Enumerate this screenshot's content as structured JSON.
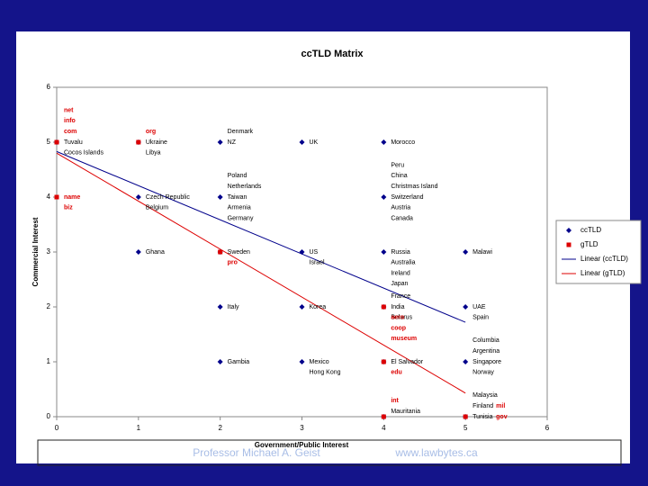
{
  "chart_data": {
    "type": "scatter",
    "title": "ccTLD Matrix",
    "x_label": "Government/Public Interest",
    "y_label": "Commercial Interest",
    "xlim": [
      0,
      6
    ],
    "ylim": [
      0,
      6
    ],
    "xticks": [
      0,
      1,
      2,
      3,
      4,
      5,
      6
    ],
    "yticks": [
      0,
      1,
      2,
      3,
      4,
      5,
      6
    ],
    "grid": false,
    "legend": "right",
    "series": [
      {
        "name": "ccTLD",
        "color": "#00008b",
        "marker": "diamond",
        "x": [
          0,
          1,
          2,
          3,
          4,
          1,
          2,
          4,
          1,
          2,
          3,
          4,
          5,
          2,
          3,
          4,
          5,
          2,
          3,
          4,
          5,
          4,
          5
        ],
        "values": [
          5,
          5,
          5,
          5,
          5,
          4,
          4,
          4,
          3,
          3,
          3,
          3,
          3,
          2,
          2,
          2,
          2,
          1,
          1,
          1,
          1,
          0,
          0
        ],
        "labels": [
          [
            "Tuvalu",
            "Cocos Islands"
          ],
          [
            "Ukraine",
            "Libya"
          ],
          [
            "Denmark",
            "NZ"
          ],
          [
            "UK"
          ],
          [
            "Morocco"
          ],
          [
            "Czech Republic",
            "Belgium"
          ],
          [
            "Poland",
            "Netherlands",
            "Taiwan",
            "Armenia",
            "Germany"
          ],
          [
            "Peru",
            "China",
            "Christmas Island",
            "Switzerland",
            "Austria",
            "Canada"
          ],
          [
            "Ghana"
          ],
          [
            "Sweden"
          ],
          [
            "US",
            "Israel"
          ],
          [
            "Russia",
            "Australia",
            "Ireland",
            "Japan"
          ],
          [
            "Malawi"
          ],
          [
            "Italy"
          ],
          [
            "Korea"
          ],
          [
            "France",
            "India",
            "Belarus"
          ],
          [
            "UAE",
            "Spain"
          ],
          [
            "Gambia"
          ],
          [
            "Mexico",
            "Hong Kong"
          ],
          [
            "El Salvador"
          ],
          [
            "Columbia",
            "Argentina",
            "Singapore",
            "Norway"
          ],
          [
            "Mauritania"
          ],
          [
            "Malaysia",
            "Finland",
            "Tunisia"
          ]
        ]
      },
      {
        "name": "gTLD",
        "color": "#dd0000",
        "marker": "square",
        "x": [
          0,
          1,
          0,
          2,
          4,
          4,
          4,
          5
        ],
        "values": [
          5,
          5,
          4,
          3,
          2,
          1,
          0,
          0
        ],
        "labels": [
          [
            "net",
            "info",
            "com"
          ],
          [
            "org"
          ],
          [
            "name",
            "biz"
          ],
          [
            "pro"
          ],
          [
            "aero",
            "coop",
            "museum"
          ],
          [
            "edu"
          ],
          [
            "int"
          ],
          [
            "mil",
            "gov"
          ]
        ]
      }
    ],
    "trendlines": [
      {
        "name": "Linear (ccTLD)",
        "color": "#00008b",
        "x": [
          0,
          5
        ],
        "values": [
          4.83,
          1.72
        ]
      },
      {
        "name": "Linear (gTLD)",
        "color": "#dd0000",
        "x": [
          0,
          5
        ],
        "values": [
          4.8,
          0.43
        ]
      }
    ]
  },
  "footer": {
    "author": "Professor Michael A. Geist",
    "url": "www.lawbytes.ca"
  }
}
